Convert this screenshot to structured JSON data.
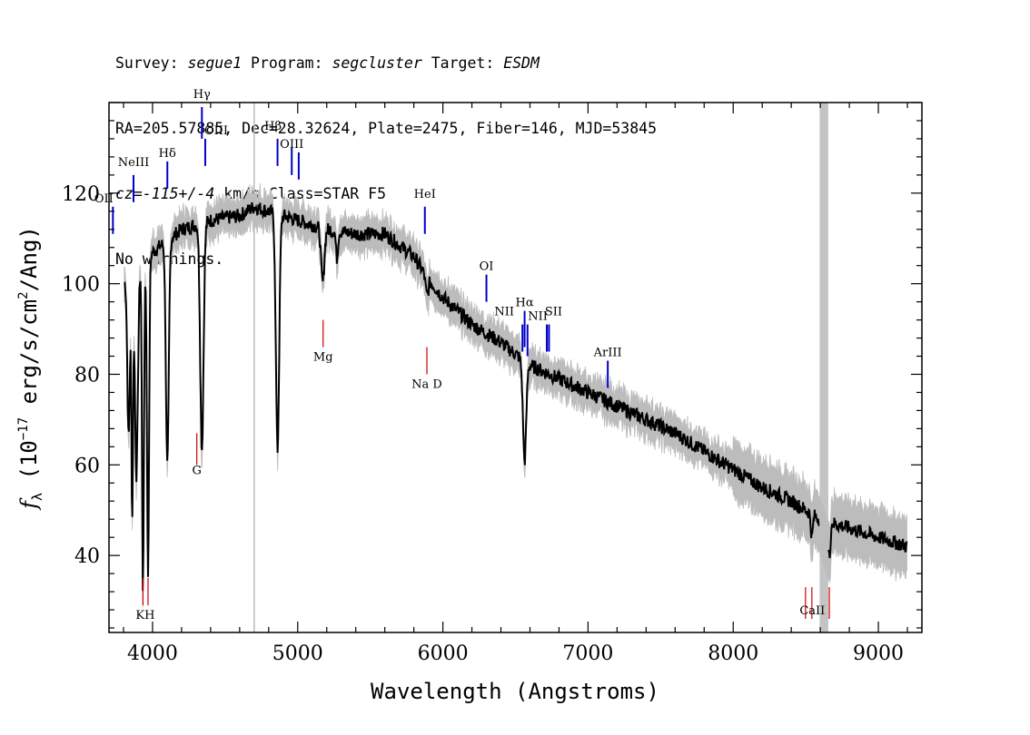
{
  "header": {
    "line1": {
      "survey_label": "Survey: ",
      "survey": "segue1",
      "program_label": " Program: ",
      "program": "segcluster",
      "target_label": " Target: ",
      "target": "ESDM"
    },
    "line2": "RA=205.57885, Dec=28.32624, Plate=2475, Fiber=146, MJD=53845",
    "line3": {
      "cz": "cz=-115+/-4",
      "rest": " km/s Class=STAR F5"
    },
    "line4": "No warnings."
  },
  "chart_data": {
    "type": "line",
    "xlabel": "Wavelength (Angstroms)",
    "ylabel": "f_λ (10^-17 erg/s/cm^2/Ang)",
    "ylabel_parts": {
      "f": "f",
      "sub": "λ",
      "pre": " (10",
      "exp1": "−17",
      "mid": " erg/s/cm",
      "exp2": "2",
      "post": "/Ang)"
    },
    "xlim": [
      3700,
      9300
    ],
    "ylim": [
      23,
      140
    ],
    "xticks": [
      4000,
      5000,
      6000,
      7000,
      8000,
      9000
    ],
    "yticks": [
      40,
      60,
      80,
      100,
      120
    ],
    "masked_band": [
      8595,
      8655
    ],
    "vertical_marker": 4700,
    "continuum": [
      [
        3800,
        100
      ],
      [
        3900,
        103
      ],
      [
        4000,
        107
      ],
      [
        4200,
        112
      ],
      [
        4400,
        114
      ],
      [
        4600,
        115
      ],
      [
        4700,
        117
      ],
      [
        4800,
        116
      ],
      [
        5000,
        114
      ],
      [
        5200,
        112
      ],
      [
        5400,
        111
      ],
      [
        5600,
        111
      ],
      [
        5800,
        106
      ],
      [
        5900,
        101
      ],
      [
        6000,
        97
      ],
      [
        6200,
        91
      ],
      [
        6400,
        87
      ],
      [
        6600,
        82
      ],
      [
        6800,
        79
      ],
      [
        7000,
        76
      ],
      [
        7200,
        73
      ],
      [
        7400,
        70
      ],
      [
        7600,
        67
      ],
      [
        7800,
        63
      ],
      [
        8000,
        59
      ],
      [
        8200,
        55
      ],
      [
        8400,
        52
      ],
      [
        8600,
        48
      ],
      [
        8800,
        46
      ],
      [
        9000,
        44
      ],
      [
        9200,
        42
      ]
    ],
    "absorption_features": [
      {
        "x": 3835,
        "depth": 35,
        "width": 12
      },
      {
        "x": 3860,
        "depth": 53,
        "width": 8
      },
      {
        "x": 3889,
        "depth": 45,
        "width": 14
      },
      {
        "x": 3934,
        "depth": 72,
        "width": 9
      },
      {
        "x": 3969,
        "depth": 70,
        "width": 10
      },
      {
        "x": 4102,
        "depth": 50,
        "width": 14
      },
      {
        "x": 4340,
        "depth": 50,
        "width": 16
      },
      {
        "x": 4861,
        "depth": 52,
        "width": 16
      },
      {
        "x": 5172,
        "depth": 12,
        "width": 16
      },
      {
        "x": 5270,
        "depth": 6,
        "width": 10
      },
      {
        "x": 5890,
        "depth": 4,
        "width": 14
      },
      {
        "x": 6563,
        "depth": 22,
        "width": 16
      },
      {
        "x": 8542,
        "depth": 5,
        "width": 10
      },
      {
        "x": 8662,
        "depth": 8,
        "width": 10
      }
    ],
    "emission_lines": [
      {
        "label": "OII",
        "x": 3727,
        "label_y": 118,
        "y0": 111,
        "y1": 117,
        "label_dx": -10
      },
      {
        "label": "NeIII",
        "x": 3869,
        "label_y": 126,
        "y0": 118,
        "y1": 124,
        "label_dx": 0
      },
      {
        "label": "Hδ",
        "x": 4102,
        "label_y": 128,
        "y0": 121,
        "y1": 127,
        "label_dx": 0
      },
      {
        "label": "Hγ",
        "x": 4340,
        "label_y": 141,
        "y0": 132,
        "y1": 139,
        "label_dx": 0
      },
      {
        "label": "OIII",
        "x": 4363,
        "label_y": 133,
        "y0": 126,
        "y1": 132,
        "label_dx": 12
      },
      {
        "label": "Hβ",
        "x": 4861,
        "label_y": 134,
        "y0": 126,
        "y1": 132,
        "label_dx": -5
      },
      {
        "label": "OIII",
        "x": 4959,
        "label_y": 130,
        "y0": 124,
        "y1": 130,
        "label_dx": 0
      },
      {
        "label": "",
        "x": 5007,
        "label_y": 0,
        "y0": 123,
        "y1": 129,
        "label_dx": 0
      },
      {
        "label": "HeI",
        "x": 5876,
        "label_y": 119,
        "y0": 111,
        "y1": 117,
        "label_dx": 0
      },
      {
        "label": "OI",
        "x": 6300,
        "label_y": 103,
        "y0": 96,
        "y1": 102,
        "label_dx": 0
      },
      {
        "label": "NII",
        "x": 6548,
        "label_y": 93,
        "y0": 85,
        "y1": 91,
        "label_dx": -20
      },
      {
        "label": "Hα",
        "x": 6563,
        "label_y": 95,
        "y0": 86,
        "y1": 94,
        "label_dx": 0
      },
      {
        "label": "",
        "x": 6583,
        "label_y": 0,
        "y0": 84,
        "y1": 91,
        "label_dx": 0
      },
      {
        "label": "NII",
        "x": 6716,
        "label_y": 92,
        "y0": 85,
        "y1": 91,
        "label_dx": -10
      },
      {
        "label": "SII",
        "x": 6731,
        "label_y": 93,
        "y0": 85,
        "y1": 91,
        "label_dx": 5
      },
      {
        "label": "ArIII",
        "x": 7136,
        "label_y": 84,
        "y0": 77,
        "y1": 83,
        "label_dx": 0
      }
    ],
    "absorption_markers": [
      {
        "label": "KH",
        "xs": [
          3934,
          3969
        ],
        "label_x": 3950,
        "label_y": 26,
        "y0": 29,
        "y1": 35
      },
      {
        "label": "G",
        "xs": [
          4305
        ],
        "label_x": 4305,
        "label_y": 58,
        "y0": 60,
        "y1": 67
      },
      {
        "label": "Mg",
        "xs": [
          5175
        ],
        "label_x": 5175,
        "label_y": 83,
        "y0": 86,
        "y1": 92
      },
      {
        "label": "Na  D",
        "xs": [
          5890
        ],
        "label_x": 5890,
        "label_y": 77,
        "y0": 80,
        "y1": 86
      },
      {
        "label": "CaII",
        "xs": [
          8498,
          8542,
          8662
        ],
        "label_x": 8545,
        "label_y": 27,
        "y0": 26,
        "y1": 33
      }
    ],
    "colors": {
      "flux": "#000000",
      "noise": "#bcbcbc",
      "emission": "#0000cc",
      "absorption": "#cc0000",
      "mask": "#c4c4c4",
      "marker": "#bbbbbb"
    }
  }
}
